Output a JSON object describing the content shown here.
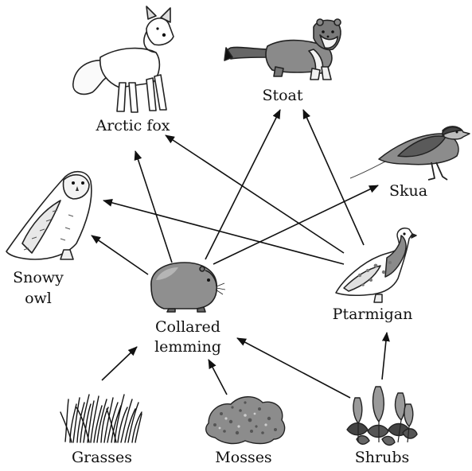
{
  "organisms": {
    "arctic_fox": "Arctic fox",
    "stoat": "Stoat",
    "skua": "Skua",
    "snowy_owl_line1": "Snowy",
    "snowy_owl_line2": "owl",
    "collared_lemming_line1": "Collared",
    "collared_lemming_line2": "lemming",
    "ptarmigan": "Ptarmigan",
    "grasses": "Grasses",
    "mosses": "Mosses",
    "shrubs": "Shrubs"
  },
  "links": [
    {
      "from": "Grasses",
      "to": "Collared lemming"
    },
    {
      "from": "Mosses",
      "to": "Collared lemming"
    },
    {
      "from": "Shrubs",
      "to": "Collared lemming"
    },
    {
      "from": "Shrubs",
      "to": "Ptarmigan"
    },
    {
      "from": "Collared lemming",
      "to": "Snowy owl"
    },
    {
      "from": "Collared lemming",
      "to": "Arctic fox"
    },
    {
      "from": "Collared lemming",
      "to": "Stoat"
    },
    {
      "from": "Collared lemming",
      "to": "Skua"
    },
    {
      "from": "Ptarmigan",
      "to": "Snowy owl"
    },
    {
      "from": "Ptarmigan",
      "to": "Arctic fox"
    },
    {
      "from": "Ptarmigan",
      "to": "Stoat"
    }
  ]
}
